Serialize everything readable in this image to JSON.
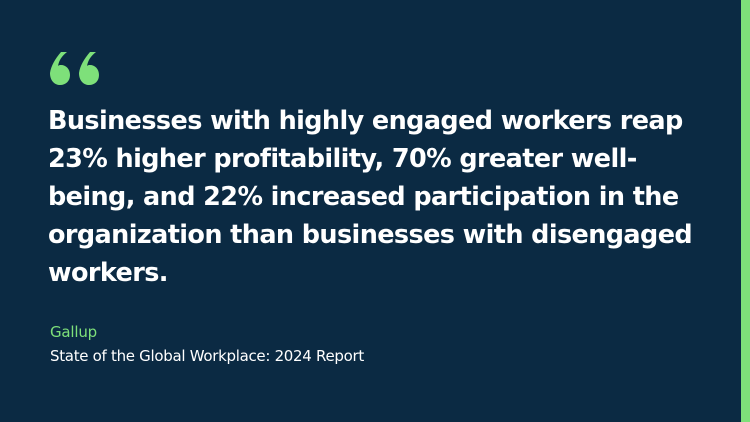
{
  "colors": {
    "background": "#0b2a43",
    "accent": "#7ee07a",
    "text": "#ffffff"
  },
  "quote": {
    "icon": "quotation-mark-icon",
    "text": "Businesses with highly engaged workers reap 23% higher profitability, 70% greater well-being, and 22% increased participation in the organization than businesses with disengaged workers."
  },
  "source": {
    "name": "Gallup",
    "title": "State of the Global Workplace: 2024 Report"
  }
}
